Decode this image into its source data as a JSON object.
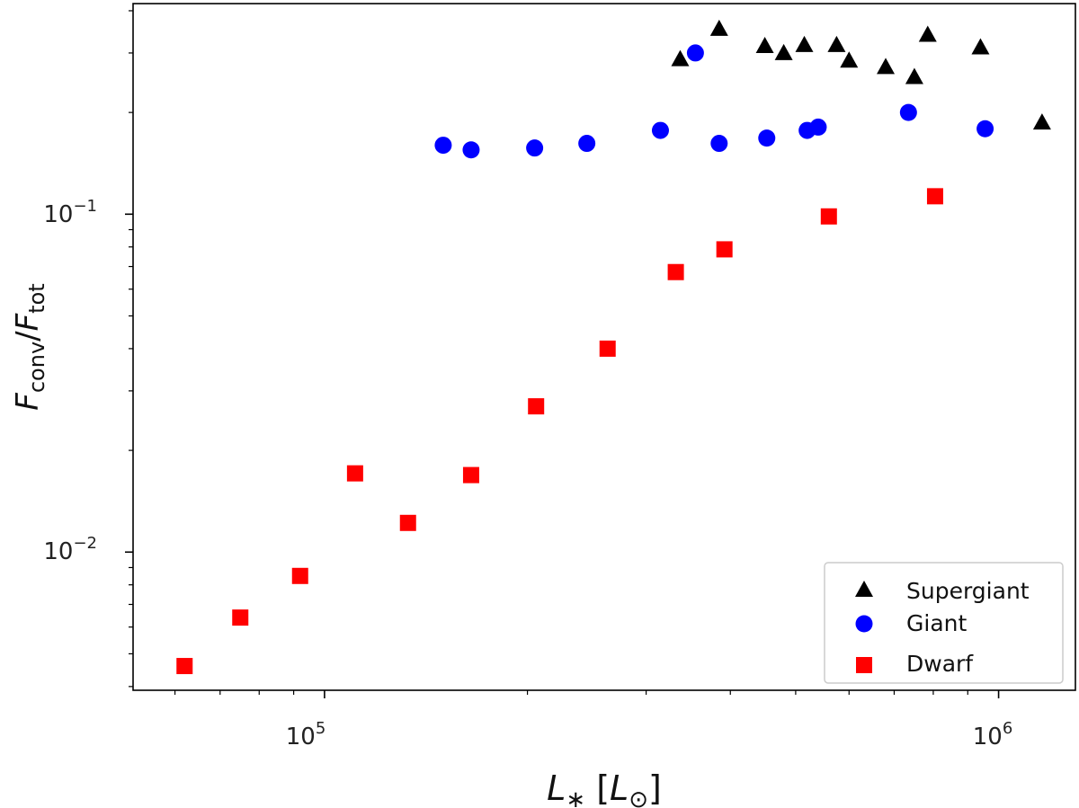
{
  "chart_data": {
    "type": "scatter",
    "title": "",
    "xlabel": {
      "main": "L",
      "main_sub": "∗",
      "unit": "L",
      "unit_sub": "⊙"
    },
    "ylabel": {
      "num": "F",
      "num_sub": "conv",
      "den": "F",
      "den_sub": "tot"
    },
    "x_scale": "log",
    "y_scale": "log",
    "xlim": [
      52000,
      1300000
    ],
    "ylim": [
      0.0039,
      0.42
    ],
    "x_ticks": [
      {
        "value": 100000,
        "base": "10",
        "exp": "5"
      },
      {
        "value": 1000000,
        "base": "10",
        "exp": "6"
      }
    ],
    "y_ticks": [
      {
        "value": 0.01,
        "base": "10",
        "exp": "−2"
      },
      {
        "value": 0.1,
        "base": "10",
        "exp": "−1"
      }
    ],
    "legend_position": "lower-right",
    "series": [
      {
        "name": "Supergiant",
        "marker": "triangle",
        "color": "#000000",
        "points": [
          [
            337000,
            0.288
          ],
          [
            385000,
            0.354
          ],
          [
            450000,
            0.315
          ],
          [
            480000,
            0.3
          ],
          [
            515000,
            0.317
          ],
          [
            575000,
            0.317
          ],
          [
            600000,
            0.285
          ],
          [
            680000,
            0.273
          ],
          [
            750000,
            0.255
          ],
          [
            785000,
            0.34
          ],
          [
            940000,
            0.312
          ],
          [
            1160000,
            0.187
          ]
        ]
      },
      {
        "name": "Giant",
        "marker": "circle",
        "color": "#0000ff",
        "points": [
          [
            150000,
            0.16
          ],
          [
            165000,
            0.155
          ],
          [
            205000,
            0.157
          ],
          [
            245000,
            0.162
          ],
          [
            315000,
            0.177
          ],
          [
            355000,
            0.3
          ],
          [
            385000,
            0.162
          ],
          [
            453000,
            0.168
          ],
          [
            520000,
            0.177
          ],
          [
            540000,
            0.181
          ],
          [
            735000,
            0.2
          ],
          [
            955000,
            0.179
          ]
        ]
      },
      {
        "name": "Dwarf",
        "marker": "square",
        "color": "#ff0000",
        "points": [
          [
            62000,
            0.0046
          ],
          [
            75000,
            0.0064
          ],
          [
            92000,
            0.0085
          ],
          [
            111000,
            0.0171
          ],
          [
            133000,
            0.0122
          ],
          [
            165000,
            0.0169
          ],
          [
            206000,
            0.027
          ],
          [
            263000,
            0.04
          ],
          [
            332000,
            0.0674
          ],
          [
            392000,
            0.0787
          ],
          [
            560000,
            0.0985
          ],
          [
            805000,
            0.113
          ]
        ]
      }
    ]
  }
}
